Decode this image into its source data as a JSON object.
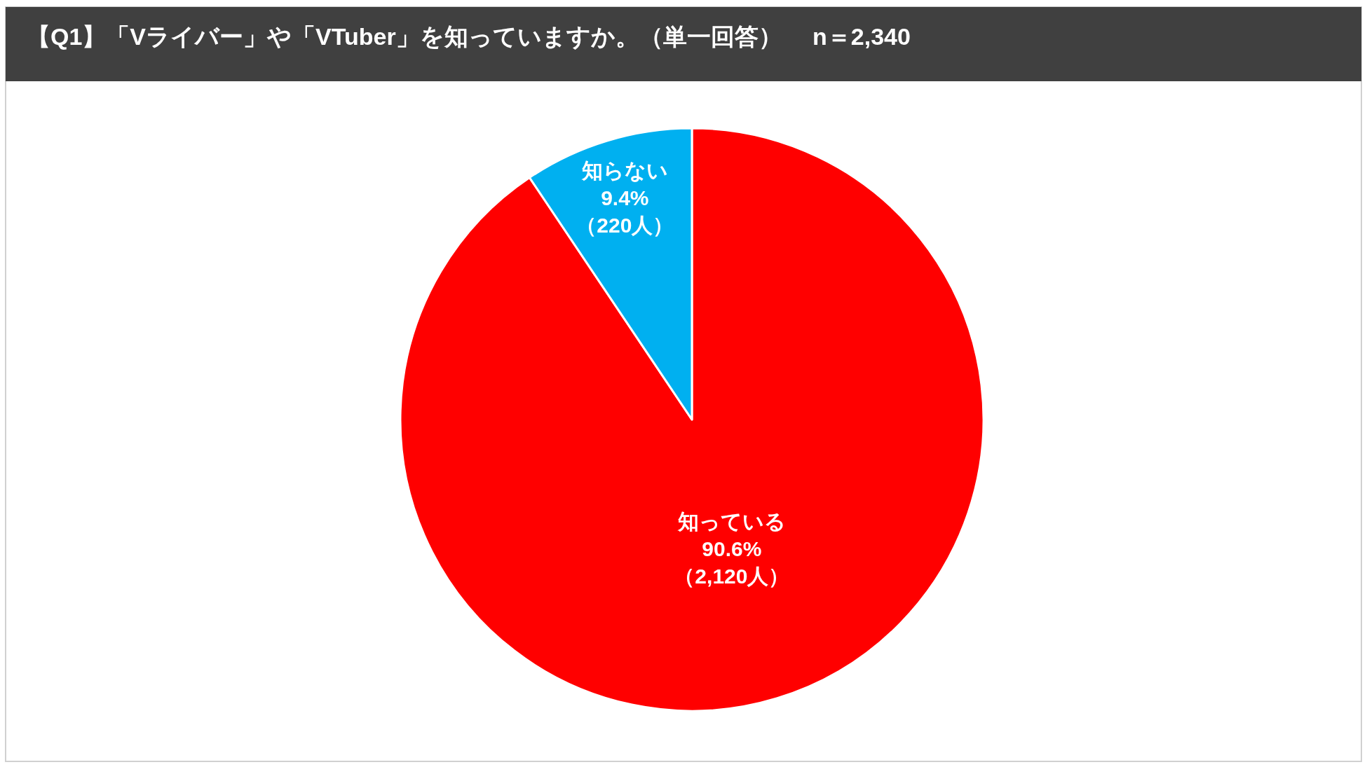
{
  "chart_data": {
    "type": "pie",
    "title": "【Q1】「Vライバー」や「VTuber」を知っていますか。（単一回答）　 n＝2,340",
    "categories": [
      "知っている",
      "知らない"
    ],
    "values": [
      90.6,
      9.4
    ],
    "value_labels": [
      "90.6%",
      "9.4%"
    ],
    "colors": [
      "#ff0000",
      "#00b0f0"
    ],
    "annotations": [
      {
        "text": "（2,120人）",
        "x": "知っている"
      },
      {
        "text": "（220人）",
        "x": "知らない"
      }
    ]
  }
}
